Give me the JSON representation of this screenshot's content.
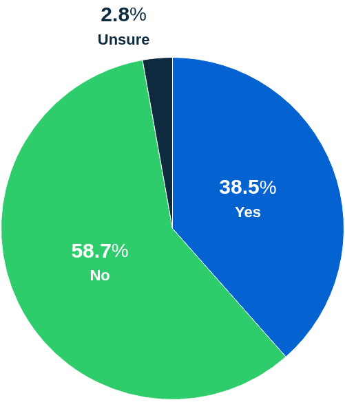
{
  "chart_data": {
    "type": "pie",
    "categories": [
      "Yes",
      "No",
      "Unsure"
    ],
    "values": [
      38.5,
      58.7,
      2.8
    ],
    "value_labels": [
      "38.5%",
      "58.7%",
      "2.8%"
    ],
    "colors": [
      "#0563d1",
      "#2ecc6b",
      "#0d2a3f"
    ],
    "data_labels": true
  }
}
